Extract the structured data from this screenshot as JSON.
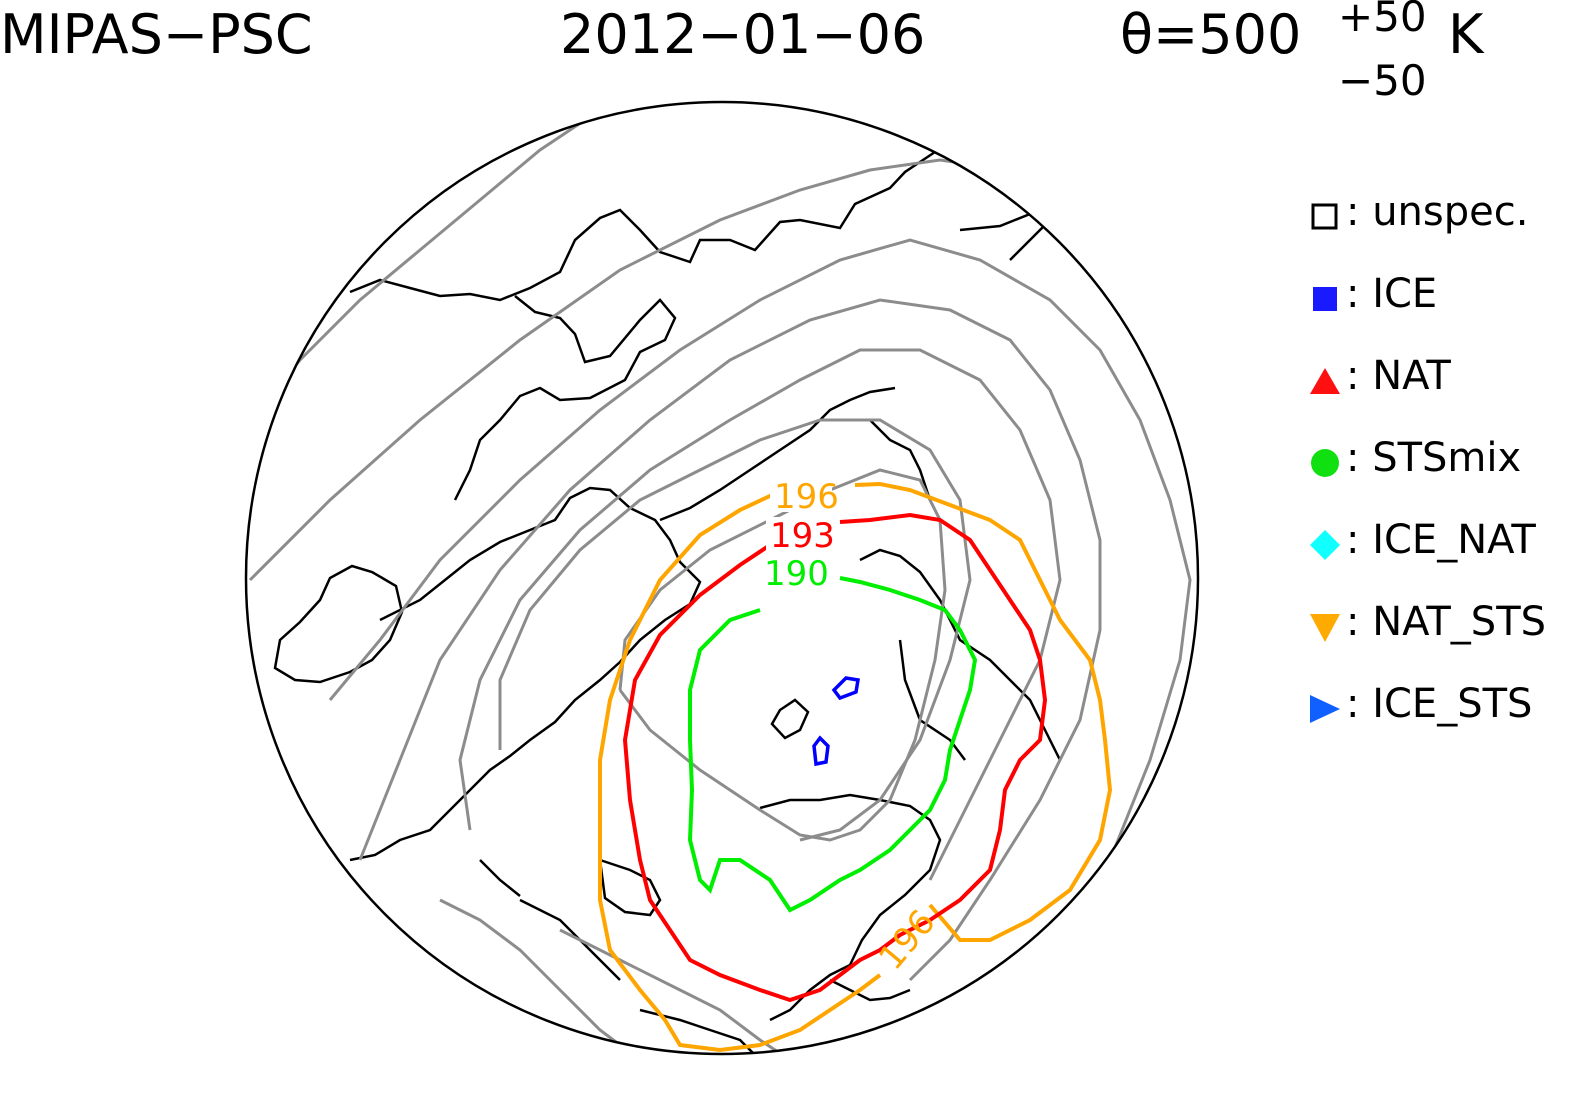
{
  "header": {
    "title": "MIPAS−PSC",
    "date": "2012−01−06",
    "theta_label": "θ=500",
    "theta_sup": "+50",
    "theta_sub": "−50",
    "theta_unit": "K"
  },
  "legend": {
    "items": [
      {
        "marker": "open-square",
        "color": "#000000",
        "label": ": unspec."
      },
      {
        "marker": "filled-square",
        "color": "#1a1aff",
        "label": ": ICE"
      },
      {
        "marker": "triangle-up",
        "color": "#ff1010",
        "label": ": NAT"
      },
      {
        "marker": "circle",
        "color": "#10e010",
        "label": ": STSmix"
      },
      {
        "marker": "diamond",
        "color": "#10ffff",
        "label": ": ICE_NAT"
      },
      {
        "marker": "triangle-down",
        "color": "#ffaa00",
        "label": ": NAT_STS"
      },
      {
        "marker": "triangle-right",
        "color": "#1060ff",
        "label": ": ICE_STS"
      }
    ]
  },
  "contours": {
    "labels": {
      "orange": "196",
      "red": "193",
      "green": "190"
    },
    "colors": {
      "orange": "#ffa500",
      "red": "#ff0000",
      "green": "#00ee00",
      "gray": "#909090",
      "ice": "#0000ff"
    }
  }
}
